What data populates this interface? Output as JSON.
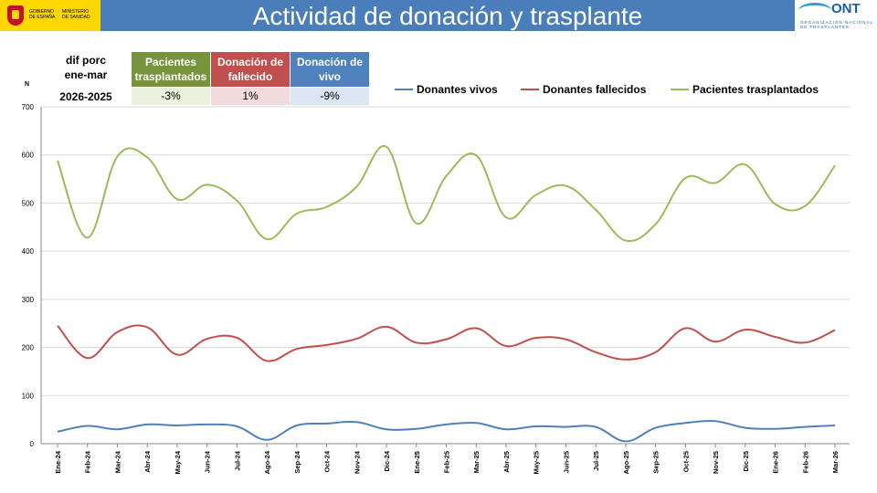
{
  "header": {
    "title": "Actividad de donación y trasplante",
    "logo_left_text_1": "GOBIERNO DE ESPAÑA",
    "logo_left_text_2": "MINISTERIO DE SANIDAD",
    "logo_right_text": "ONT",
    "logo_right_sub": "ORGANIZACIÓN NACIONAL DE TRASPLANTES"
  },
  "summary_table": {
    "label_line1": "dif porc",
    "label_line2": "ene-mar",
    "label_period": "2026-2025",
    "columns": [
      {
        "header": "Pacientes trasplantados",
        "value": "-3%",
        "color": "#77933c"
      },
      {
        "header": "Donación de fallecido",
        "value": "1%",
        "color": "#c0504d"
      },
      {
        "header": "Donación de vivo",
        "value": "-9%",
        "color": "#4f81bd"
      }
    ]
  },
  "chart_data": {
    "type": "line",
    "title": "",
    "xlabel": "",
    "ylabel": "N",
    "ylim": [
      0,
      700
    ],
    "yticks": [
      0,
      100,
      200,
      300,
      400,
      500,
      600,
      700
    ],
    "grid": true,
    "legend_position": "top",
    "categories": [
      "Ene-24",
      "Feb-24",
      "Mar-24",
      "Abr-24",
      "May-24",
      "Jun-24",
      "Jul-24",
      "Ago-24",
      "Sep-24",
      "Oct-24",
      "Nov-24",
      "Dic-24",
      "Ene-25",
      "Feb-25",
      "Mar-25",
      "Abr-25",
      "May-25",
      "Jun-25",
      "Jul-25",
      "Ago-25",
      "Sep-25",
      "Oct-25",
      "Nov-25",
      "Dic-25",
      "Ene-26",
      "Feb-26",
      "Mar-26"
    ],
    "series": [
      {
        "name": "Donantes vivos",
        "color": "#4f81bd",
        "values": [
          25,
          37,
          30,
          40,
          38,
          40,
          36,
          8,
          38,
          42,
          45,
          30,
          31,
          40,
          43,
          30,
          36,
          35,
          35,
          5,
          33,
          43,
          47,
          33,
          31,
          35,
          38
        ]
      },
      {
        "name": "Donantes fallecidos",
        "color": "#c0504d",
        "values": [
          245,
          178,
          232,
          242,
          185,
          218,
          220,
          172,
          197,
          205,
          218,
          243,
          210,
          217,
          240,
          203,
          220,
          217,
          190,
          175,
          190,
          240,
          212,
          237,
          222,
          210,
          236
        ]
      },
      {
        "name": "Pacientes trasplantados",
        "color": "#9bbb59",
        "values": [
          588,
          428,
          597,
          595,
          508,
          538,
          505,
          425,
          478,
          492,
          534,
          617,
          458,
          556,
          599,
          470,
          517,
          536,
          486,
          422,
          456,
          552,
          542,
          580,
          498,
          494,
          578
        ]
      }
    ]
  }
}
